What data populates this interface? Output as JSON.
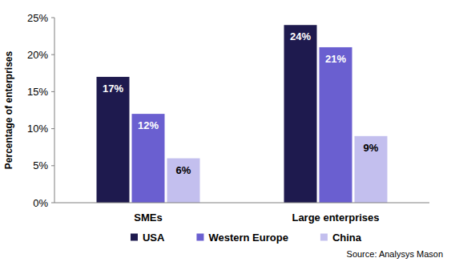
{
  "chart_data": {
    "type": "bar",
    "y_label": "Percentage of enterprises",
    "categories": [
      "SMEs",
      "Large enterprises"
    ],
    "series": [
      {
        "name": "USA",
        "color": "#1e1a4e",
        "values": [
          17,
          24
        ],
        "value_labels": [
          "17%",
          "24%"
        ]
      },
      {
        "name": "Western Europe",
        "color": "#6a5fd0",
        "values": [
          12,
          21
        ],
        "value_labels": [
          "12%",
          "21%"
        ]
      },
      {
        "name": "China",
        "color": "#c3bfee",
        "values": [
          6,
          9
        ],
        "value_labels": [
          "6%",
          "9%"
        ]
      }
    ],
    "ylim": [
      0,
      25
    ],
    "yticks": [
      {
        "value": 0,
        "label": "0%"
      },
      {
        "value": 5,
        "label": "5%"
      },
      {
        "value": 10,
        "label": "10%"
      },
      {
        "value": 15,
        "label": "15%"
      },
      {
        "value": 20,
        "label": "20%"
      },
      {
        "value": 25,
        "label": "25%"
      }
    ],
    "grid": false,
    "legend": "bottom",
    "data_labels": true,
    "annotations": [
      "Source: Analysys Mason"
    ]
  }
}
